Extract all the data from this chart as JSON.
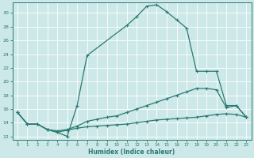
{
  "xlabel": "Humidex (Indice chaleur)",
  "bg_color": "#cde8e8",
  "grid_color": "#ffffff",
  "line_color": "#2a7a72",
  "xlim": [
    -0.5,
    23.5
  ],
  "ylim": [
    11.5,
    31.5
  ],
  "yticks": [
    12,
    14,
    16,
    18,
    20,
    22,
    24,
    26,
    28,
    30
  ],
  "xticks": [
    0,
    1,
    2,
    3,
    4,
    5,
    6,
    7,
    8,
    9,
    10,
    11,
    12,
    13,
    14,
    15,
    16,
    17,
    18,
    19,
    20,
    21,
    22,
    23
  ],
  "curve1_x": [
    0,
    1,
    2,
    3,
    4,
    5,
    6,
    7,
    11,
    12,
    13,
    14,
    15,
    16,
    17,
    18,
    19,
    20,
    21,
    22,
    23
  ],
  "curve1_y": [
    15.5,
    13.8,
    13.8,
    13.0,
    12.6,
    12.0,
    16.5,
    23.8,
    28.2,
    29.5,
    31.0,
    31.2,
    30.2,
    29.0,
    27.8,
    21.5,
    21.5,
    21.5,
    16.5,
    16.5,
    14.8
  ],
  "curve2_x": [
    0,
    1,
    2,
    3,
    4,
    5,
    6,
    7,
    8,
    9,
    10,
    11,
    12,
    13,
    14,
    15,
    16,
    17,
    18,
    19,
    20,
    21,
    22,
    23
  ],
  "curve2_y": [
    15.5,
    13.8,
    13.8,
    13.0,
    12.8,
    13.0,
    13.5,
    14.2,
    14.5,
    14.8,
    15.0,
    15.5,
    16.0,
    16.5,
    17.0,
    17.5,
    18.0,
    18.5,
    19.0,
    19.0,
    18.8,
    16.2,
    16.5,
    14.8
  ],
  "curve3_x": [
    0,
    1,
    2,
    3,
    4,
    5,
    6,
    7,
    8,
    9,
    10,
    11,
    12,
    13,
    14,
    15,
    16,
    17,
    18,
    19,
    20,
    21,
    22,
    23
  ],
  "curve3_y": [
    15.5,
    13.8,
    13.8,
    13.0,
    12.6,
    12.9,
    13.2,
    13.4,
    13.5,
    13.6,
    13.7,
    13.8,
    14.0,
    14.2,
    14.4,
    14.5,
    14.6,
    14.7,
    14.8,
    15.0,
    15.2,
    15.3,
    15.2,
    14.8
  ]
}
